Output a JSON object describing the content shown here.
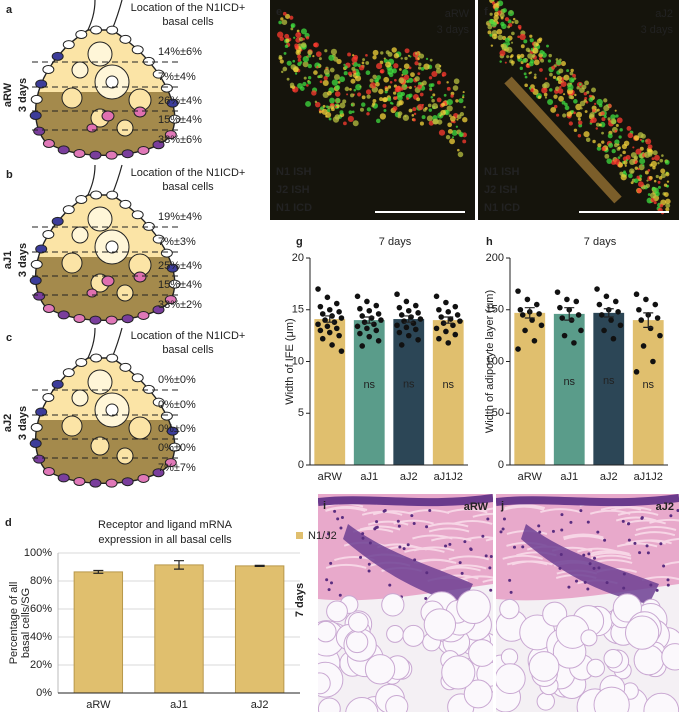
{
  "panels": [
    {
      "letter": "a",
      "title": [
        "Location of the N1ICD+",
        "basal cells"
      ],
      "group": [
        "aRW",
        "3 days"
      ],
      "percentages": [
        "14%±6%",
        "7%±4%",
        "26%±4%",
        "15%±4%",
        "38%±6%"
      ]
    },
    {
      "letter": "b",
      "title": [
        "Location of the N1ICD+",
        "basal cells"
      ],
      "group": [
        "aJ1",
        "3 days"
      ],
      "percentages": [
        "19%±4%",
        "7%±3%",
        "25%±4%",
        "15%±4%",
        "33%±2%"
      ]
    },
    {
      "letter": "c",
      "title": [
        "Location of the N1ICD+",
        "basal cells"
      ],
      "group": [
        "aJ2",
        "3 days"
      ],
      "percentages": [
        "0%±0%",
        "0%±0%",
        "0%±0%",
        "0%±0%",
        "7%±7%"
      ]
    }
  ],
  "images": [
    {
      "letter": "e",
      "label": [
        "aRW",
        "3 days"
      ],
      "channels": [
        "N1 ISH",
        "J2 ISH",
        "N1 ICD"
      ]
    },
    {
      "letter": "f",
      "label": [
        "aJ2",
        "3 days"
      ],
      "channels": [
        "N1 ISH",
        "J2 ISH",
        "N1 ICD"
      ]
    },
    {
      "letter": "i",
      "label": [
        "aRW"
      ]
    },
    {
      "letter": "j",
      "label": [
        "aJ2"
      ]
    }
  ],
  "histology_group": "7 days",
  "chart_data": [
    {
      "type": "bar",
      "panel_label": "d",
      "title": [
        "Receptor and ligand mRNA",
        "expression in all basal cells"
      ],
      "ylabel": [
        "Percentage of all",
        "basal cells/SG"
      ],
      "categories": [
        "aRW",
        "aJ1",
        "aJ2"
      ],
      "series": [
        {
          "name": "N1/J2",
          "color": "#e0bf6e",
          "values": [
            86.5,
            91.5,
            90.8
          ],
          "errors": [
            1,
            3,
            0.4
          ]
        }
      ],
      "ylim": [
        0,
        100
      ],
      "yticks": [
        {
          "value": 0,
          "label": "0%"
        },
        {
          "value": 20,
          "label": "20%"
        },
        {
          "value": 40,
          "label": "40%"
        },
        {
          "value": 60,
          "label": "60%"
        },
        {
          "value": 80,
          "label": "80%"
        },
        {
          "value": 100,
          "label": "100%"
        }
      ],
      "grid": true,
      "legend": "top-right"
    },
    {
      "type": "bar",
      "panel_label": "g",
      "title": [
        "7 days"
      ],
      "ylabel": [
        "Width of IFE (μm)"
      ],
      "categories": [
        "aRW",
        "aJ1",
        "aJ2",
        "aJ1J2"
      ],
      "values": [
        14.1,
        14.0,
        14.1,
        14.0
      ],
      "errors": [
        0.3,
        0.3,
        0.3,
        0.3
      ],
      "colors": [
        "#e0bf6e",
        "#5a9c8a",
        "#2c4656",
        "#e0bf6e"
      ],
      "annotations": [
        null,
        "ns",
        "ns",
        "ns"
      ],
      "points": [
        [
          17,
          16.2,
          15.6,
          15.3,
          15,
          14.8,
          14.6,
          14.4,
          14.2,
          14,
          13.8,
          13.6,
          13.4,
          13.2,
          13,
          12.8,
          12.5,
          12.2,
          11.6,
          11
        ],
        [
          16.3,
          15.8,
          15.4,
          15.1,
          14.9,
          14.6,
          14.4,
          14.2,
          14,
          13.8,
          13.6,
          13.4,
          13.2,
          13,
          12.7,
          12.4,
          12,
          11.5
        ],
        [
          16.5,
          15.8,
          15.4,
          15.2,
          14.9,
          14.7,
          14.5,
          14.3,
          14.1,
          13.9,
          13.7,
          13.5,
          13.3,
          13.1,
          12.8,
          12.5,
          12.1,
          11.6
        ],
        [
          16.3,
          15.7,
          15.3,
          15,
          14.8,
          14.5,
          14.3,
          14.1,
          13.9,
          13.7,
          13.5,
          13.2,
          12.9,
          12.6,
          12.2,
          11.8
        ]
      ],
      "ylim": [
        0,
        20
      ],
      "yticks": [
        0,
        5,
        10,
        15,
        20
      ]
    },
    {
      "type": "bar",
      "panel_label": "h",
      "title": [
        "7 days"
      ],
      "ylabel": [
        "Width of adipocyte layer (μm)"
      ],
      "categories": [
        "aRW",
        "aJ1",
        "aJ2",
        "aJ1J2"
      ],
      "values": [
        147,
        146,
        147,
        140
      ],
      "errors": [
        5,
        6,
        4,
        7
      ],
      "colors": [
        "#e0bf6e",
        "#5a9c8a",
        "#2c4656",
        "#e0bf6e"
      ],
      "annotations": [
        null,
        "ns",
        "ns",
        "ns"
      ],
      "points": [
        [
          168,
          160,
          155,
          150,
          148,
          146,
          145,
          140,
          135,
          130,
          120,
          112
        ],
        [
          167,
          160,
          158,
          152,
          150,
          145,
          142,
          140,
          130,
          125,
          118
        ],
        [
          170,
          163,
          158,
          155,
          150,
          148,
          145,
          140,
          135,
          130,
          122
        ],
        [
          165,
          160,
          155,
          150,
          145,
          142,
          140,
          132,
          125,
          115,
          100,
          90
        ]
      ],
      "ylim": [
        0,
        200
      ],
      "yticks": [
        0,
        50,
        100,
        150,
        200
      ]
    }
  ]
}
